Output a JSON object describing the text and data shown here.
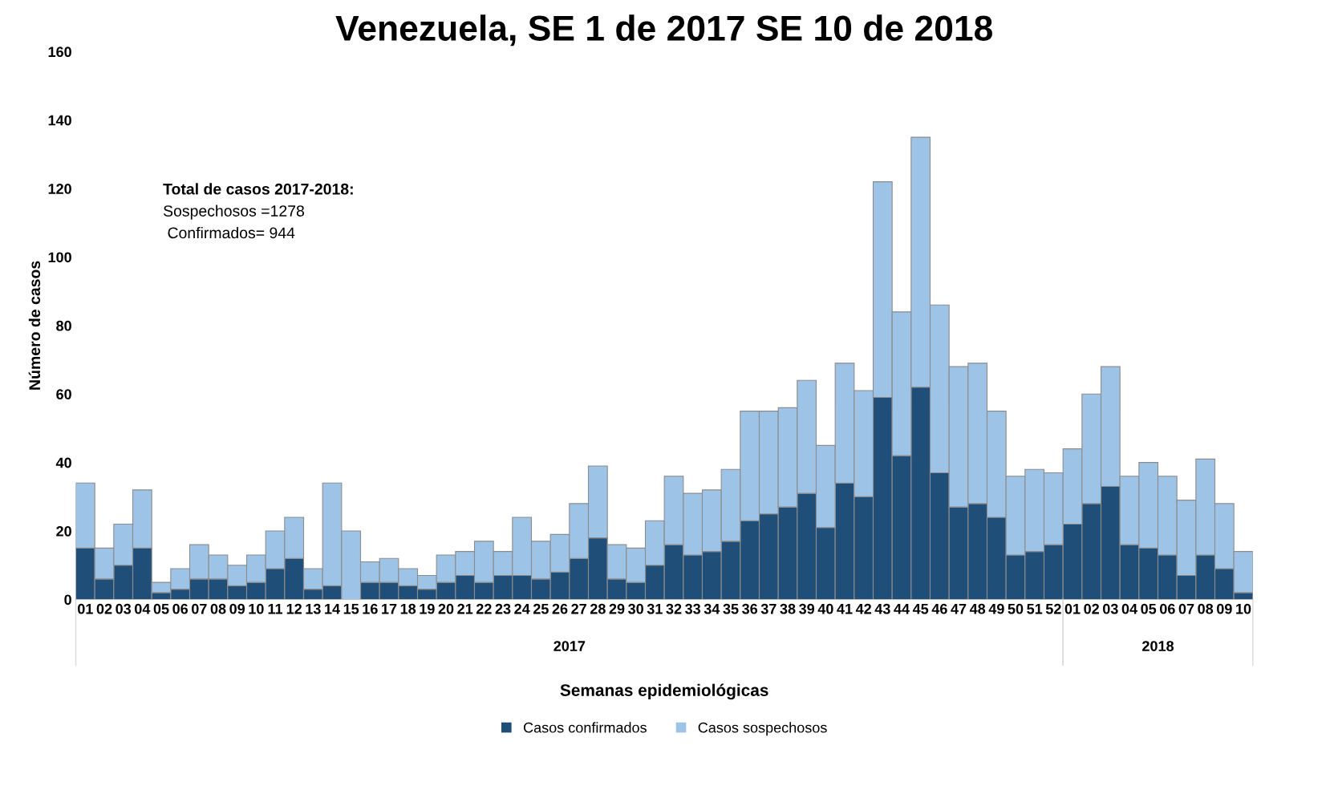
{
  "chart_data": {
    "type": "bar",
    "title": "Venezuela, SE 1 de 2017 SE 10 de 2018",
    "xlabel": "Semanas epidemiológicas",
    "ylabel": "Número de casos",
    "categories": [
      "01",
      "02",
      "03",
      "04",
      "05",
      "06",
      "07",
      "08",
      "09",
      "10",
      "11",
      "12",
      "13",
      "14",
      "15",
      "16",
      "17",
      "18",
      "19",
      "20",
      "21",
      "22",
      "23",
      "24",
      "25",
      "26",
      "27",
      "28",
      "29",
      "30",
      "31",
      "32",
      "33",
      "34",
      "35",
      "36",
      "37",
      "38",
      "39",
      "40",
      "41",
      "42",
      "43",
      "44",
      "45",
      "46",
      "47",
      "48",
      "49",
      "50",
      "51",
      "52",
      "01",
      "02",
      "03",
      "04",
      "05",
      "06",
      "07",
      "08",
      "09",
      "10"
    ],
    "series": [
      {
        "name": "Casos confirmados",
        "color": "#1f4e79",
        "values": [
          15,
          6,
          10,
          15,
          2,
          3,
          6,
          6,
          4,
          5,
          9,
          12,
          3,
          4,
          0,
          5,
          5,
          4,
          3,
          5,
          7,
          5,
          7,
          7,
          6,
          8,
          12,
          18,
          6,
          5,
          10,
          16,
          13,
          14,
          17,
          23,
          25,
          27,
          31,
          21,
          34,
          30,
          59,
          42,
          62,
          37,
          27,
          28,
          24,
          13,
          14,
          16,
          22,
          28,
          33,
          16,
          15,
          13,
          7,
          13,
          9,
          2
        ]
      },
      {
        "name": "Casos sospechosos",
        "color": "#9dc3e6",
        "values": [
          19,
          9,
          12,
          17,
          3,
          6,
          10,
          7,
          6,
          8,
          11,
          12,
          6,
          30,
          20,
          6,
          7,
          5,
          4,
          8,
          7,
          12,
          7,
          17,
          11,
          11,
          16,
          21,
          10,
          10,
          13,
          20,
          18,
          18,
          21,
          32,
          30,
          29,
          33,
          24,
          35,
          31,
          63,
          42,
          73,
          49,
          41,
          41,
          31,
          23,
          24,
          21,
          22,
          32,
          35,
          20,
          25,
          23,
          22,
          28,
          19,
          12
        ]
      }
    ],
    "stacked": true,
    "ylim": [
      0,
      160
    ],
    "yticks": [
      0,
      20,
      40,
      60,
      80,
      100,
      120,
      140,
      160
    ],
    "grid": false,
    "legend": "bottom",
    "annotations": [
      "Total de casos 2017-2018:",
      "Sospechosos =1278",
      " Confirmados= 944",
      "2017",
      "2018"
    ]
  }
}
